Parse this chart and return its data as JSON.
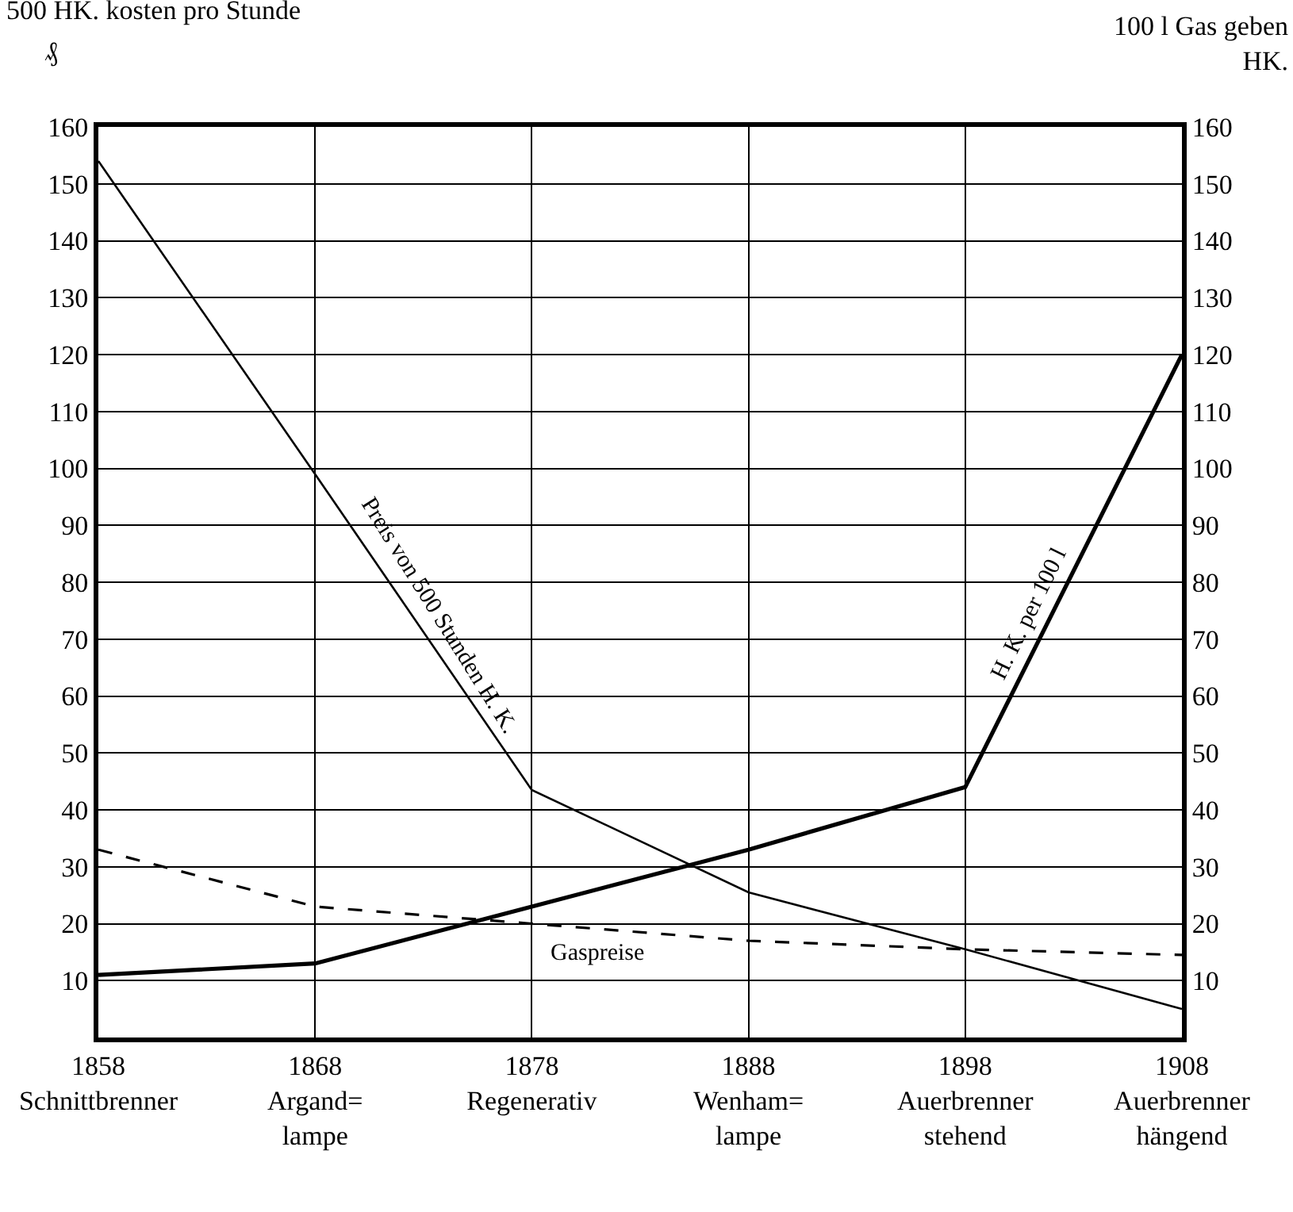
{
  "chart_data": {
    "type": "line",
    "ylabel": "500 HK. kosten pro Stunde",
    "y2label": "100 l Gas geben HK.",
    "annotations": [
      "₰"
    ],
    "x": [
      1858,
      1868,
      1878,
      1888,
      1898,
      1908
    ],
    "xlim": [
      1858,
      1908
    ],
    "xticks": [
      {
        "value": 1858,
        "label": "1858\nSchnittbrenner"
      },
      {
        "value": 1868,
        "label": "1868\nArgand=\nlampe"
      },
      {
        "value": 1878,
        "label": "1878\nRegenerativ"
      },
      {
        "value": 1888,
        "label": "1888\nWenham=\nlampe"
      },
      {
        "value": 1898,
        "label": "1898\nAuerbrenner\nstehend"
      },
      {
        "value": 1908,
        "label": "1908\nAuerbrenner\nhängend"
      }
    ],
    "ylim": [
      0,
      160
    ],
    "yticks": [
      10,
      20,
      30,
      40,
      50,
      60,
      70,
      80,
      90,
      100,
      110,
      120,
      130,
      140,
      150,
      160
    ],
    "y2lim": [
      0,
      160
    ],
    "y2ticks": [
      10,
      20,
      30,
      40,
      50,
      60,
      70,
      80,
      90,
      100,
      110,
      120,
      130,
      140,
      150,
      160
    ],
    "grid": true,
    "legend": false,
    "marker": "none",
    "series": [
      {
        "name": "Preis von 500 Stunden H. K.",
        "color": "#000000",
        "line_style": "solid",
        "values": [
          154,
          99,
          43.5,
          25.5,
          15.5,
          5
        ]
      },
      {
        "name": "H. K. per 100 l",
        "color": "#000000",
        "line_style": "solid",
        "axis": "y2",
        "values": [
          11,
          13,
          23,
          33,
          44,
          120
        ]
      },
      {
        "name": "Gaspreise",
        "color": "#000000",
        "line_style": "dashed",
        "values": [
          33,
          23,
          20,
          17,
          15.5,
          14.5
        ]
      }
    ]
  }
}
